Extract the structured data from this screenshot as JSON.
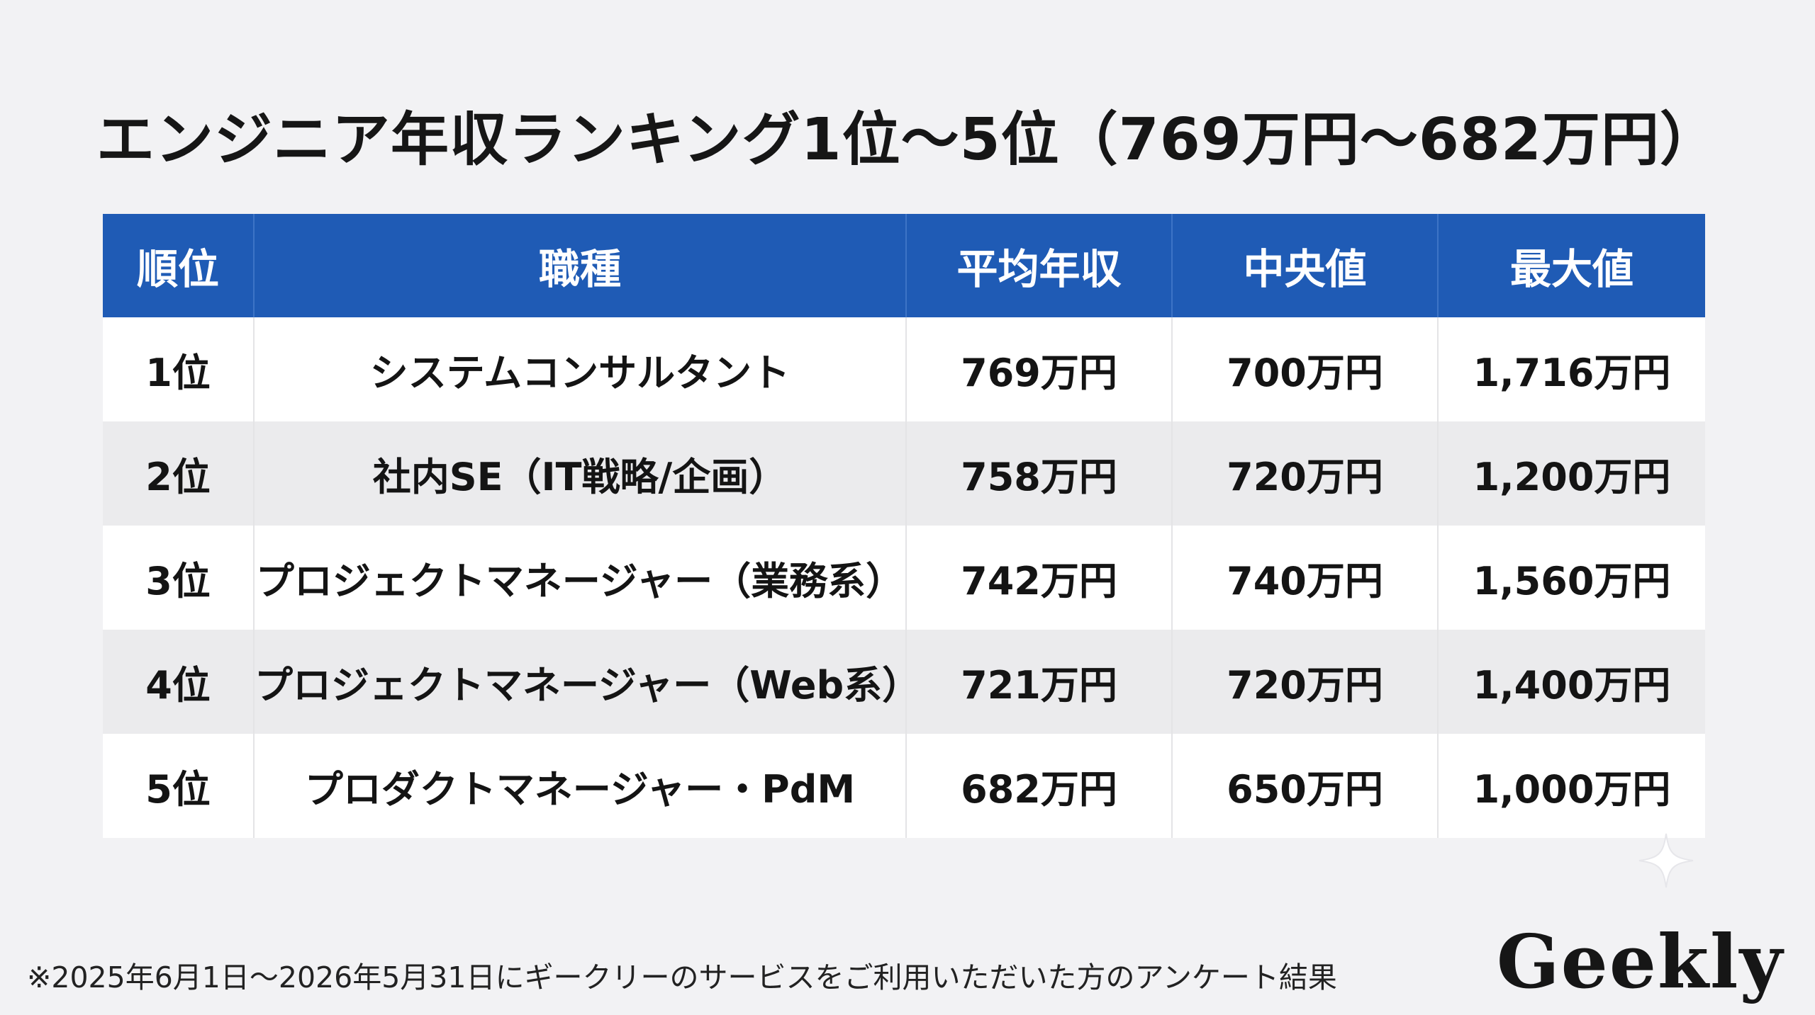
{
  "title": "エンジニア年収ランキング1位〜5位（769万円〜682万円）",
  "table": {
    "headers": [
      "順位",
      "職種",
      "平均年収",
      "中央値",
      "最大値"
    ],
    "rows": [
      {
        "rank": "1位",
        "job": "システムコンサルタント",
        "avg": "769万円",
        "median": "700万円",
        "max": "1,716万円"
      },
      {
        "rank": "2位",
        "job": "社内SE（IT戦略/企画）",
        "avg": "758万円",
        "median": "720万円",
        "max": "1,200万円"
      },
      {
        "rank": "3位",
        "job": "プロジェクトマネージャー（業務系）",
        "avg": "742万円",
        "median": "740万円",
        "max": "1,560万円"
      },
      {
        "rank": "4位",
        "job": "プロジェクトマネージャー（Web系）",
        "avg": "721万円",
        "median": "720万円",
        "max": "1,400万円"
      },
      {
        "rank": "5位",
        "job": "プロダクトマネージャー・PdM",
        "avg": "682万円",
        "median": "650万円",
        "max": "1,000万円"
      }
    ]
  },
  "note": "※2025年6月1日〜2026年5月31日にギークリーのサービスをご利用いただいた方のアンケート結果",
  "logo": "Geekly",
  "colors": {
    "header_bg": "#1f5bb5",
    "background": "#f2f2f4",
    "row_odd": "#ffffff",
    "row_even": "#ebebed"
  }
}
